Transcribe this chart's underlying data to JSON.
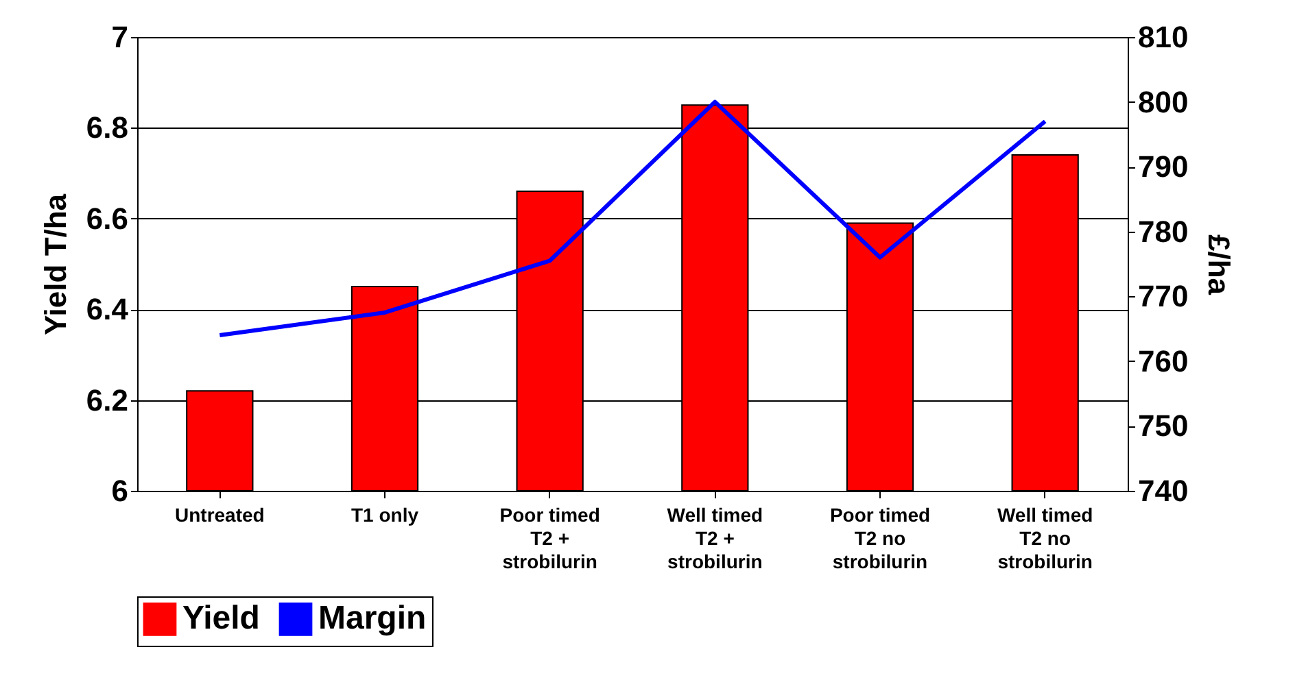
{
  "chart_data": {
    "type": "bar",
    "ylabel": "Yield T/ha",
    "y2label": "£/ha",
    "categories": [
      "Untreated",
      "T1 only",
      "Poor timed T2 + strobilurin",
      "Well timed T2 + strobilurin",
      "Poor timed T2 no strobilurin",
      "Well timed T2 no strobilurin"
    ],
    "series": [
      {
        "name": "Yield",
        "color": "#ff0000",
        "values": [
          6.22,
          6.45,
          6.66,
          6.85,
          6.59,
          6.74
        ]
      },
      {
        "name": "Margin",
        "type": "line",
        "axis": "y2",
        "color": "#0000ff",
        "values": [
          764,
          767.5,
          775.5,
          800,
          776,
          797
        ]
      }
    ],
    "ylim": [
      6,
      7
    ],
    "yticks": [
      6,
      6.2,
      6.4,
      6.6,
      6.8,
      7
    ],
    "y2lim": [
      740,
      810
    ],
    "y2ticks": [
      740,
      750,
      760,
      770,
      780,
      790,
      800,
      810
    ],
    "grid": "y",
    "legend": "bottom",
    "marker": "none"
  }
}
